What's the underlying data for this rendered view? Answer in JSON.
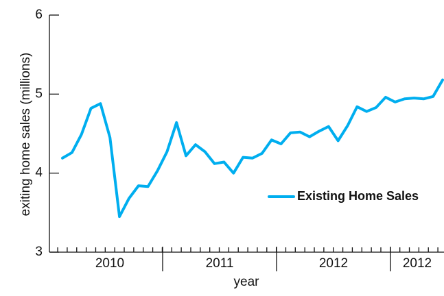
{
  "chart_data": {
    "type": "line",
    "x_label": "year",
    "y_label": "exiting home sales (millions)",
    "year_labels": [
      "2010",
      "2011",
      "2012",
      "2012"
    ],
    "ylim": [
      3,
      6
    ],
    "yticks": [
      3,
      4,
      5,
      6
    ],
    "legend": "right",
    "series": [
      {
        "name": "Existing Home Sales",
        "color": "#00aeef",
        "values": [
          4.19,
          4.26,
          4.49,
          4.82,
          4.88,
          4.45,
          3.45,
          3.68,
          3.84,
          3.83,
          4.03,
          4.27,
          4.64,
          4.22,
          4.36,
          4.27,
          4.12,
          4.14,
          4.0,
          4.2,
          4.19,
          4.25,
          4.42,
          4.37,
          4.51,
          4.52,
          4.46,
          4.53,
          4.59,
          4.41,
          4.6,
          4.84,
          4.78,
          4.83,
          4.96,
          4.9,
          4.94,
          4.95,
          4.94,
          4.97,
          5.18
        ]
      }
    ]
  }
}
